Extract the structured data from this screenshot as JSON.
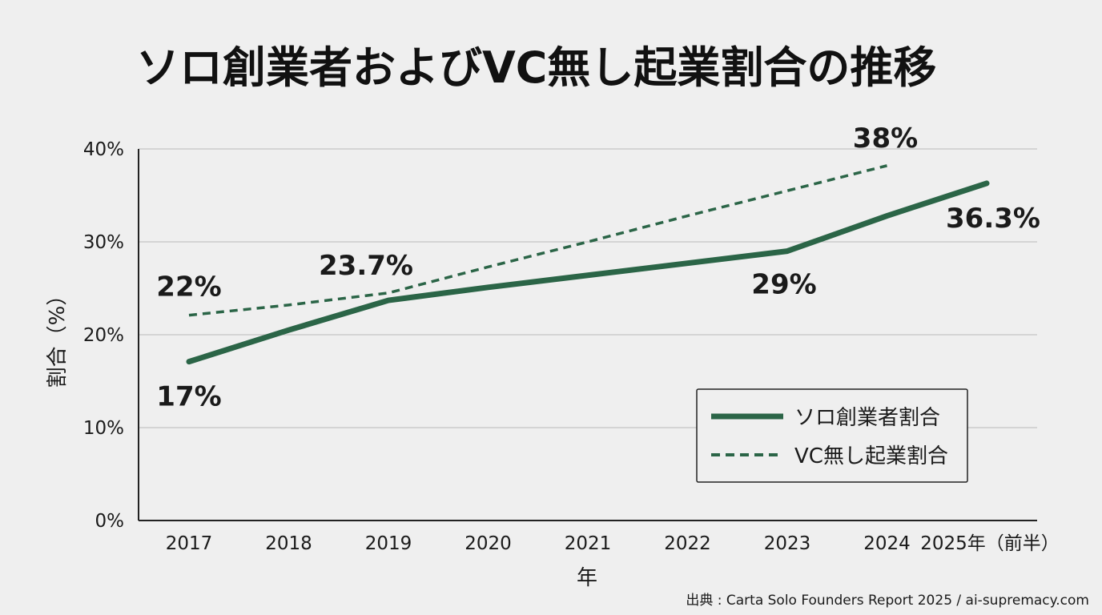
{
  "chart_data": {
    "type": "line",
    "title": "ソロ創業者およびVC無し起業割合の推移",
    "xlabel": "年",
    "ylabel": "割合（%）",
    "categories": [
      "2017",
      "2018",
      "2019",
      "2020",
      "2021",
      "2022",
      "2023",
      "2024",
      "2025年（前半）"
    ],
    "ylim": [
      0,
      40
    ],
    "yticks": [
      "0%",
      "10%",
      "20%",
      "30%",
      "40%"
    ],
    "grid": true,
    "legend_position": "bottom-right",
    "series": [
      {
        "name": "ソロ創業者割合",
        "style": "solid",
        "values": [
          17.1,
          20.5,
          23.7,
          25.1,
          26.4,
          27.7,
          29.0,
          32.8,
          36.3
        ],
        "labels": [
          {
            "index": 0,
            "text": "17%"
          },
          {
            "index": 2,
            "text": "23.7%"
          },
          {
            "index": 6,
            "text": "29%"
          },
          {
            "index": 8,
            "text": "36.3%"
          }
        ]
      },
      {
        "name": "VC無し起業割合",
        "style": "dashed",
        "values": [
          22.1,
          23.2,
          24.5,
          27.3,
          30.0,
          32.8,
          35.5,
          38.2,
          null
        ],
        "labels": [
          {
            "index": 0,
            "text": "22%"
          },
          {
            "index": 7,
            "text": "38%"
          }
        ]
      }
    ],
    "colors": {
      "line": "#2b6547",
      "grid": "#c4c4c4",
      "axis": "#222222"
    },
    "source": "出典 : Carta Solo Founders Report 2025 / ai-supremacy.com"
  }
}
